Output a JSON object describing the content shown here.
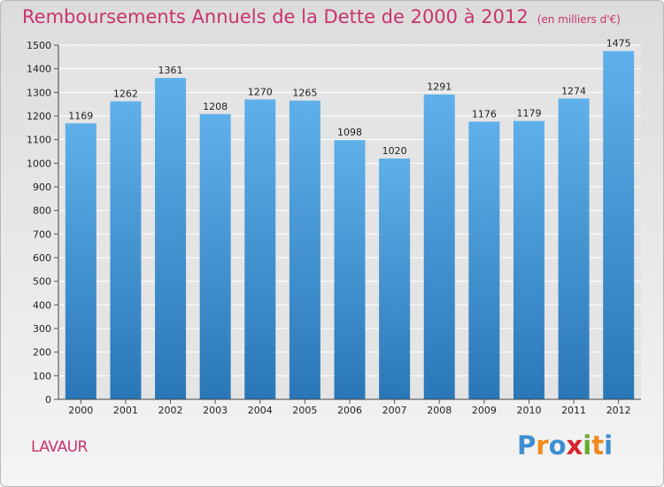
{
  "title": "Remboursements Annuels de la Dette de 2000 à 2012",
  "subtitle": "(en milliers d'€)",
  "place": "LAVAUR",
  "logo": {
    "letters": [
      "P",
      "r",
      "o",
      "x",
      "i",
      "t",
      "i"
    ],
    "colors": [
      "#3d8fd1",
      "#f08a1c",
      "#3d8fd1",
      "#d9242b",
      "#6aaa2a",
      "#f08a1c",
      "#3d8fd1"
    ]
  },
  "colors": {
    "bar_top": "#5fb0ea",
    "bar_bottom": "#2a77b8",
    "title": "#c8336e"
  },
  "chart_data": {
    "type": "bar",
    "categories": [
      "2000",
      "2001",
      "2002",
      "2003",
      "2004",
      "2005",
      "2006",
      "2007",
      "2008",
      "2009",
      "2010",
      "2011",
      "2012"
    ],
    "values": [
      1169,
      1262,
      1361,
      1208,
      1270,
      1265,
      1098,
      1020,
      1291,
      1176,
      1179,
      1274,
      1475
    ],
    "ylim": [
      0,
      1500
    ],
    "yticks": [
      0,
      100,
      200,
      300,
      400,
      500,
      600,
      700,
      800,
      900,
      1000,
      1100,
      1200,
      1300,
      1400,
      1500
    ],
    "grid": true,
    "title": "Remboursements Annuels de la Dette de 2000 à 2012"
  }
}
